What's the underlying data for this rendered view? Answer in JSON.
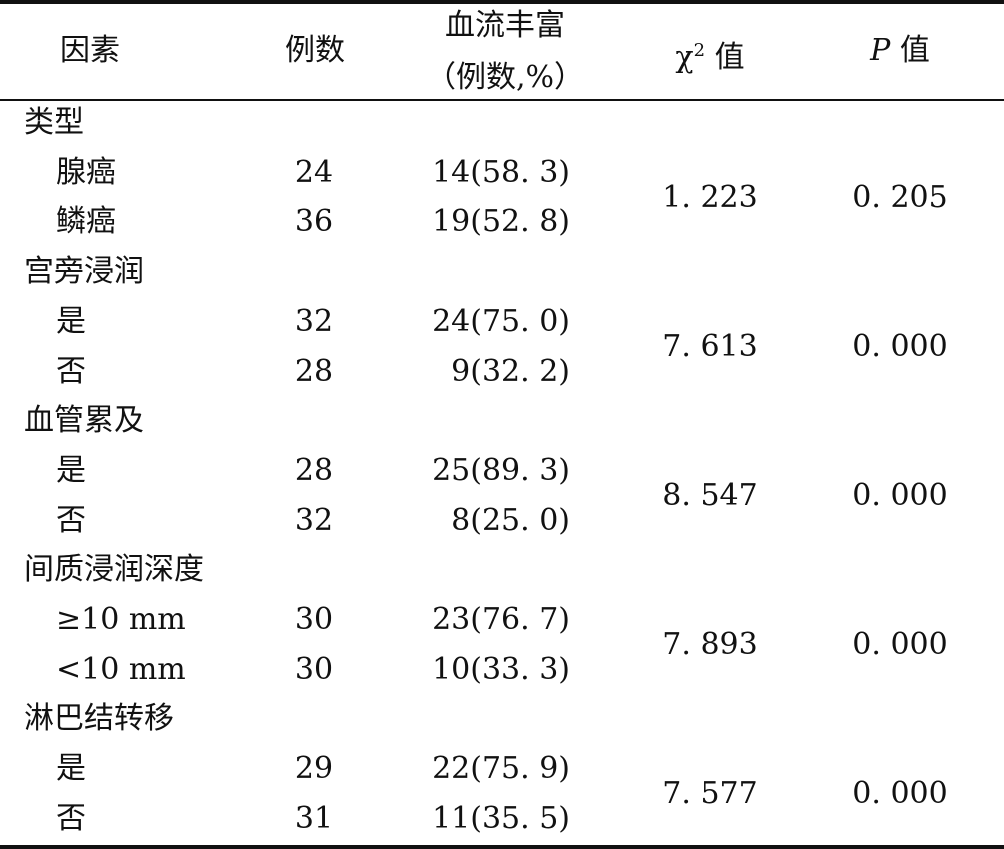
{
  "header": {
    "factor": "因素",
    "cases": "例数",
    "rich_line1": "血流丰富",
    "rich_line2": "（例数,%）",
    "chi_symbol": "χ",
    "chi_sup": "2",
    "chi_suffix": "值",
    "p_symbol": "P",
    "p_suffix": "值"
  },
  "groups": [
    {
      "title": "类型",
      "chi": "1. 223",
      "p": "0. 205",
      "rows": [
        {
          "label": "腺癌",
          "n": "24",
          "rich": "14(58. 3)"
        },
        {
          "label": "鳞癌",
          "n": "36",
          "rich": "19(52. 8)"
        }
      ]
    },
    {
      "title": "宫旁浸润",
      "chi": "7. 613",
      "p": "0. 000",
      "rows": [
        {
          "label": "是",
          "n": "32",
          "rich": "24(75. 0)"
        },
        {
          "label": "否",
          "n": "28",
          "rich": "9(32. 2)"
        }
      ]
    },
    {
      "title": "血管累及",
      "chi": "8. 547",
      "p": "0. 000",
      "rows": [
        {
          "label": "是",
          "n": "28",
          "rich": "25(89. 3)"
        },
        {
          "label": "否",
          "n": "32",
          "rich": "8(25. 0)"
        }
      ]
    },
    {
      "title": "间质浸润深度",
      "chi": "7. 893",
      "p": "0. 000",
      "rows": [
        {
          "label": "≥10 mm",
          "n": "30",
          "rich": "23(76. 7)"
        },
        {
          "label": "<10 mm",
          "n": "30",
          "rich": "10(33. 3)"
        }
      ]
    },
    {
      "title": "淋巴结转移",
      "chi": "7. 577",
      "p": "0. 000",
      "rows": [
        {
          "label": "是",
          "n": "29",
          "rich": "22(75. 9)"
        },
        {
          "label": "否",
          "n": "31",
          "rich": "11(35. 5)"
        }
      ]
    }
  ]
}
